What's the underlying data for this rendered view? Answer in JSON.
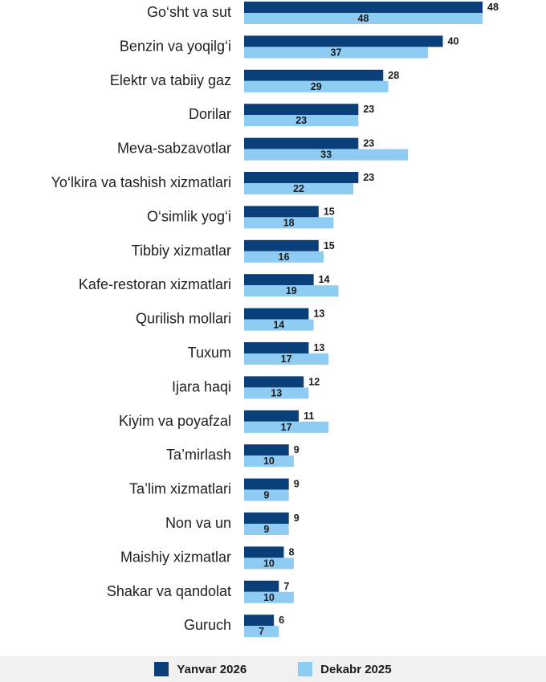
{
  "chart_data": {
    "type": "bar",
    "orientation": "horizontal",
    "categories": [
      "Go‘sht va sut",
      "Benzin va yoqilg‘i",
      "Elektr va tabiiy gaz",
      "Dorilar",
      "Meva-sabzavotlar",
      "Yo‘lkira va tashish xizmatlari",
      "O‘simlik yog‘i",
      "Tibbiy xizmatlar",
      "Kafe-restoran xizmatlari",
      "Qurilish mollari",
      "Tuxum",
      "Ijara haqi",
      "Kiyim va poyafzal",
      "Ta’mirlash",
      "Ta’lim xizmatlari",
      "Non va un",
      "Maishiy xizmatlar",
      "Shakar va qandolat",
      "Guruch"
    ],
    "series": [
      {
        "name": "Yanvar 2026",
        "color": "#0b3f7a",
        "values": [
          48,
          40,
          28,
          23,
          23,
          23,
          15,
          15,
          14,
          13,
          13,
          12,
          11,
          9,
          9,
          9,
          8,
          7,
          6
        ]
      },
      {
        "name": "Dekabr 2025",
        "color": "#8fccf4",
        "values": [
          48,
          37,
          29,
          23,
          33,
          22,
          18,
          16,
          19,
          14,
          17,
          13,
          17,
          10,
          9,
          9,
          10,
          10,
          7
        ]
      }
    ],
    "xlim": [
      0,
      48
    ],
    "grid": false,
    "legend_position": "bottom"
  }
}
